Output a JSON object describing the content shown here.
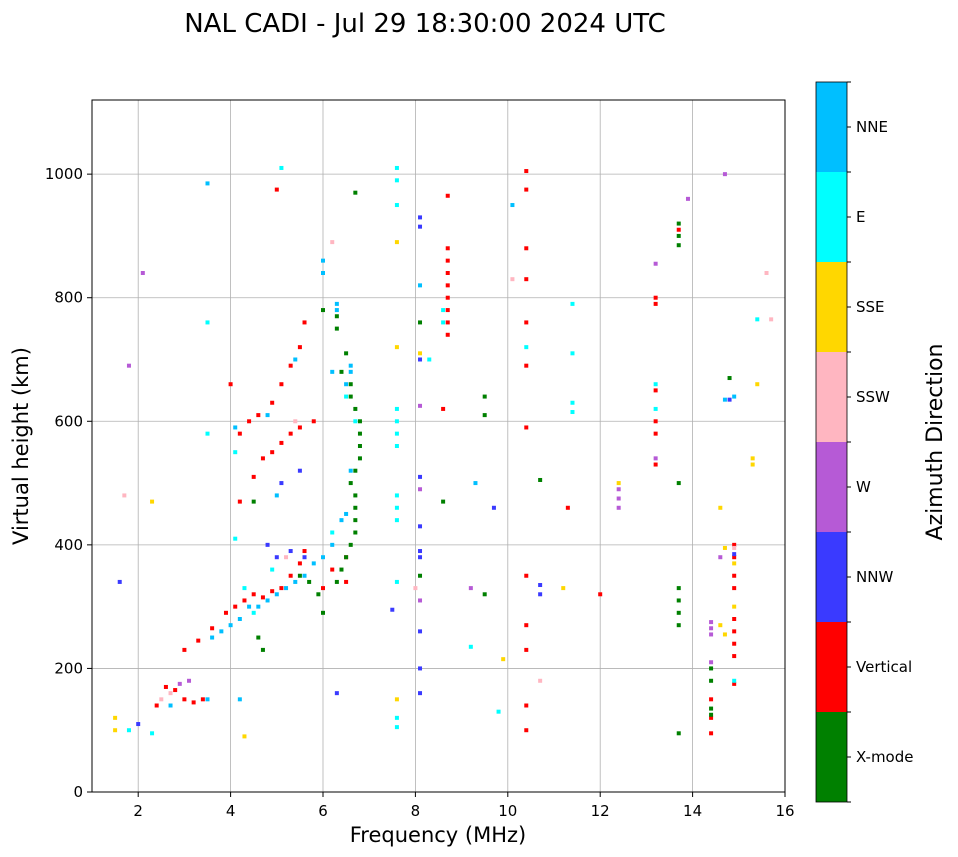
{
  "chart_data": {
    "type": "scatter",
    "title": "NAL CADI - Jul 29 18:30:00 2024 UTC",
    "xlabel": "Frequency (MHz)",
    "ylabel": "Virtual height (km)",
    "xlim": [
      1,
      16
    ],
    "ylim": [
      0,
      1120
    ],
    "xticks": [
      2,
      4,
      6,
      8,
      10,
      12,
      14,
      16
    ],
    "yticks": [
      0,
      200,
      400,
      600,
      800,
      1000
    ],
    "grid": true,
    "colorbar": {
      "title": "Azimuth Direction",
      "categories": [
        {
          "name": "X-mode",
          "color": "#008000"
        },
        {
          "name": "Vertical",
          "color": "#ff0000"
        },
        {
          "name": "NNW",
          "color": "#3a3aff"
        },
        {
          "name": "W",
          "color": "#b65ad6"
        },
        {
          "name": "SSW",
          "color": "#ffb6c1"
        },
        {
          "name": "SSE",
          "color": "#ffd700"
        },
        {
          "name": "E",
          "color": "#00ffff"
        },
        {
          "name": "NNE",
          "color": "#00bfff"
        }
      ]
    },
    "series": [
      {
        "name": "Vertical",
        "color": "#ff0000",
        "points": [
          [
            2.6,
            170
          ],
          [
            2.8,
            165
          ],
          [
            3.0,
            150
          ],
          [
            3.2,
            145
          ],
          [
            3.4,
            150
          ],
          [
            3.0,
            230
          ],
          [
            3.3,
            245
          ],
          [
            3.6,
            265
          ],
          [
            3.9,
            290
          ],
          [
            4.1,
            300
          ],
          [
            4.3,
            310
          ],
          [
            4.5,
            320
          ],
          [
            4.7,
            315
          ],
          [
            4.9,
            325
          ],
          [
            5.1,
            330
          ],
          [
            5.3,
            350
          ],
          [
            5.5,
            370
          ],
          [
            5.6,
            390
          ],
          [
            4.2,
            470
          ],
          [
            4.5,
            510
          ],
          [
            4.7,
            540
          ],
          [
            4.9,
            550
          ],
          [
            5.1,
            565
          ],
          [
            5.3,
            580
          ],
          [
            5.5,
            590
          ],
          [
            5.8,
            600
          ],
          [
            4.2,
            580
          ],
          [
            4.4,
            600
          ],
          [
            4.6,
            610
          ],
          [
            4.9,
            630
          ],
          [
            5.1,
            660
          ],
          [
            5.3,
            690
          ],
          [
            5.5,
            720
          ],
          [
            5.6,
            760
          ],
          [
            4.0,
            660
          ],
          [
            5.0,
            975
          ],
          [
            6.0,
            330
          ],
          [
            6.2,
            360
          ],
          [
            2.4,
            140
          ],
          [
            8.7,
            880
          ],
          [
            8.7,
            860
          ],
          [
            8.7,
            840
          ],
          [
            8.7,
            820
          ],
          [
            8.7,
            800
          ],
          [
            8.7,
            780
          ],
          [
            8.7,
            760
          ],
          [
            8.7,
            740
          ],
          [
            8.7,
            965
          ],
          [
            8.6,
            620
          ],
          [
            10.4,
            1005
          ],
          [
            10.4,
            975
          ],
          [
            10.4,
            880
          ],
          [
            10.4,
            830
          ],
          [
            10.4,
            760
          ],
          [
            10.4,
            690
          ],
          [
            10.4,
            590
          ],
          [
            10.4,
            350
          ],
          [
            10.4,
            270
          ],
          [
            10.4,
            230
          ],
          [
            10.4,
            140
          ],
          [
            10.4,
            100
          ],
          [
            11.3,
            460
          ],
          [
            12.0,
            320
          ],
          [
            13.2,
            800
          ],
          [
            13.2,
            790
          ],
          [
            13.2,
            650
          ],
          [
            13.2,
            600
          ],
          [
            13.2,
            580
          ],
          [
            13.2,
            530
          ],
          [
            13.7,
            910
          ],
          [
            14.4,
            150
          ],
          [
            14.4,
            120
          ],
          [
            14.4,
            95
          ],
          [
            14.9,
            400
          ],
          [
            14.9,
            380
          ],
          [
            14.9,
            350
          ],
          [
            14.9,
            330
          ],
          [
            14.9,
            280
          ],
          [
            14.9,
            260
          ],
          [
            14.9,
            240
          ],
          [
            14.9,
            220
          ],
          [
            14.9,
            175
          ],
          [
            6.5,
            380
          ],
          [
            6.5,
            340
          ]
        ]
      },
      {
        "name": "X-mode",
        "color": "#008000",
        "points": [
          [
            6.3,
            340
          ],
          [
            6.4,
            360
          ],
          [
            6.5,
            380
          ],
          [
            6.6,
            400
          ],
          [
            6.7,
            420
          ],
          [
            6.7,
            440
          ],
          [
            6.7,
            460
          ],
          [
            6.7,
            480
          ],
          [
            6.6,
            500
          ],
          [
            6.7,
            520
          ],
          [
            6.8,
            540
          ],
          [
            6.8,
            560
          ],
          [
            6.8,
            580
          ],
          [
            6.8,
            600
          ],
          [
            6.7,
            620
          ],
          [
            6.6,
            640
          ],
          [
            6.6,
            660
          ],
          [
            6.4,
            680
          ],
          [
            6.3,
            750
          ],
          [
            6.3,
            770
          ],
          [
            6.0,
            290
          ],
          [
            5.9,
            320
          ],
          [
            5.7,
            340
          ],
          [
            5.5,
            350
          ],
          [
            6.5,
            710
          ],
          [
            6.0,
            780
          ],
          [
            8.6,
            470
          ],
          [
            9.5,
            610
          ],
          [
            9.5,
            640
          ],
          [
            13.7,
            920
          ],
          [
            13.7,
            900
          ],
          [
            13.7,
            885
          ],
          [
            13.7,
            500
          ],
          [
            13.7,
            330
          ],
          [
            13.7,
            310
          ],
          [
            13.7,
            290
          ],
          [
            13.7,
            270
          ],
          [
            14.4,
            200
          ],
          [
            14.4,
            180
          ],
          [
            14.4,
            135
          ],
          [
            14.4,
            125
          ],
          [
            14.8,
            670
          ],
          [
            8.1,
            760
          ],
          [
            8.1,
            350
          ],
          [
            10.7,
            505
          ],
          [
            9.5,
            320
          ],
          [
            6.7,
            970
          ],
          [
            4.5,
            470
          ],
          [
            4.6,
            250
          ],
          [
            4.7,
            230
          ],
          [
            13.7,
            95
          ]
        ]
      },
      {
        "name": "NNW",
        "color": "#3a3aff",
        "points": [
          [
            8.1,
            930
          ],
          [
            8.1,
            915
          ],
          [
            8.1,
            700
          ],
          [
            8.1,
            510
          ],
          [
            8.1,
            430
          ],
          [
            8.1,
            390
          ],
          [
            8.1,
            380
          ],
          [
            8.1,
            260
          ],
          [
            8.1,
            200
          ],
          [
            8.1,
            160
          ],
          [
            10.7,
            335
          ],
          [
            10.7,
            320
          ],
          [
            14.9,
            385
          ],
          [
            14.8,
            635
          ],
          [
            4.8,
            400
          ],
          [
            5.0,
            380
          ],
          [
            5.3,
            390
          ],
          [
            5.6,
            380
          ],
          [
            5.1,
            500
          ],
          [
            5.5,
            520
          ],
          [
            7.5,
            295
          ],
          [
            2.0,
            110
          ],
          [
            9.7,
            460
          ],
          [
            1.6,
            340
          ],
          [
            6.3,
            160
          ]
        ]
      },
      {
        "name": "W",
        "color": "#b65ad6",
        "points": [
          [
            12.4,
            490
          ],
          [
            12.4,
            475
          ],
          [
            12.4,
            460
          ],
          [
            14.4,
            275
          ],
          [
            14.4,
            265
          ],
          [
            14.4,
            255
          ],
          [
            14.4,
            210
          ],
          [
            13.2,
            855
          ],
          [
            13.2,
            540
          ],
          [
            14.7,
            1000
          ],
          [
            8.1,
            625
          ],
          [
            8.1,
            490
          ],
          [
            8.1,
            310
          ],
          [
            9.2,
            330
          ],
          [
            14.6,
            380
          ],
          [
            13.9,
            960
          ],
          [
            2.1,
            840
          ],
          [
            1.8,
            690
          ],
          [
            2.9,
            175
          ],
          [
            3.1,
            180
          ]
        ]
      },
      {
        "name": "SSW",
        "color": "#ffb6c1",
        "points": [
          [
            15.6,
            840
          ],
          [
            15.7,
            765
          ],
          [
            10.1,
            830
          ],
          [
            6.2,
            890
          ],
          [
            10.7,
            180
          ],
          [
            1.7,
            480
          ],
          [
            5.2,
            380
          ],
          [
            5.4,
            600
          ],
          [
            2.5,
            150
          ],
          [
            2.7,
            160
          ],
          [
            14.9,
            395
          ],
          [
            8.0,
            330
          ]
        ]
      },
      {
        "name": "SSE",
        "color": "#ffd700",
        "points": [
          [
            15.4,
            660
          ],
          [
            15.3,
            540
          ],
          [
            15.3,
            530
          ],
          [
            14.6,
            460
          ],
          [
            14.7,
            395
          ],
          [
            14.6,
            270
          ],
          [
            14.7,
            255
          ],
          [
            12.4,
            500
          ],
          [
            11.2,
            330
          ],
          [
            9.9,
            215
          ],
          [
            7.6,
            890
          ],
          [
            7.6,
            720
          ],
          [
            8.1,
            710
          ],
          [
            7.6,
            150
          ],
          [
            14.9,
            300
          ],
          [
            14.9,
            370
          ],
          [
            2.3,
            470
          ],
          [
            4.3,
            90
          ],
          [
            1.5,
            100
          ],
          [
            1.5,
            120
          ]
        ]
      },
      {
        "name": "E",
        "color": "#00ffff",
        "points": [
          [
            7.6,
            1010
          ],
          [
            7.6,
            990
          ],
          [
            7.6,
            950
          ],
          [
            7.6,
            620
          ],
          [
            7.6,
            600
          ],
          [
            7.6,
            580
          ],
          [
            7.6,
            560
          ],
          [
            7.6,
            480
          ],
          [
            7.6,
            460
          ],
          [
            7.6,
            440
          ],
          [
            7.6,
            340
          ],
          [
            7.6,
            120
          ],
          [
            7.6,
            105
          ],
          [
            8.6,
            780
          ],
          [
            8.6,
            760
          ],
          [
            9.2,
            235
          ],
          [
            11.4,
            790
          ],
          [
            11.4,
            710
          ],
          [
            11.4,
            630
          ],
          [
            11.4,
            615
          ],
          [
            15.4,
            765
          ],
          [
            14.9,
            180
          ],
          [
            13.2,
            620
          ],
          [
            13.2,
            660
          ],
          [
            4.1,
            410
          ],
          [
            4.3,
            330
          ],
          [
            4.5,
            290
          ],
          [
            4.9,
            360
          ],
          [
            6.2,
            420
          ],
          [
            6.5,
            640
          ],
          [
            6.7,
            600
          ],
          [
            3.5,
            760
          ],
          [
            5.1,
            1010
          ],
          [
            8.3,
            700
          ],
          [
            9.8,
            130
          ],
          [
            1.8,
            100
          ],
          [
            2.3,
            95
          ],
          [
            4.1,
            550
          ],
          [
            3.5,
            580
          ],
          [
            10.4,
            720
          ]
        ]
      },
      {
        "name": "NNE",
        "color": "#00bfff",
        "points": [
          [
            6.3,
            790
          ],
          [
            6.3,
            780
          ],
          [
            6.0,
            840
          ],
          [
            6.0,
            860
          ],
          [
            6.6,
            690
          ],
          [
            6.6,
            680
          ],
          [
            6.5,
            660
          ],
          [
            6.2,
            680
          ],
          [
            6.5,
            450
          ],
          [
            6.4,
            440
          ],
          [
            6.2,
            400
          ],
          [
            6.0,
            380
          ],
          [
            5.8,
            370
          ],
          [
            5.6,
            350
          ],
          [
            5.4,
            340
          ],
          [
            5.2,
            330
          ],
          [
            5.0,
            320
          ],
          [
            4.8,
            310
          ],
          [
            4.6,
            300
          ],
          [
            4.4,
            300
          ],
          [
            4.2,
            280
          ],
          [
            4.0,
            270
          ],
          [
            3.8,
            260
          ],
          [
            3.6,
            250
          ],
          [
            10.1,
            950
          ],
          [
            14.9,
            640
          ],
          [
            14.7,
            635
          ],
          [
            8.1,
            820
          ],
          [
            3.5,
            150
          ],
          [
            4.2,
            150
          ],
          [
            2.7,
            140
          ],
          [
            3.5,
            985
          ],
          [
            4.1,
            590
          ],
          [
            4.8,
            610
          ],
          [
            5.4,
            700
          ],
          [
            6.6,
            520
          ],
          [
            5.0,
            480
          ],
          [
            9.3,
            500
          ]
        ]
      }
    ]
  }
}
